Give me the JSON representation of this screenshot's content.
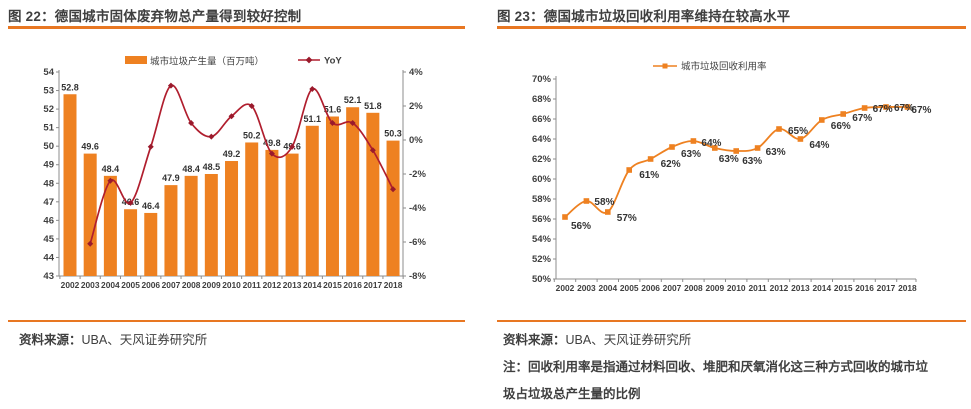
{
  "page": {
    "background": "#FFFFFF"
  },
  "colors": {
    "accent_orange": "#EE8121",
    "rule_orange": "#E87722",
    "yoy_line": "#B01E2E",
    "yoy_marker": "#9A1A2C",
    "recycle_line": "#EE8121",
    "axis_gray": "#8C8C8C",
    "text_dark": "#3F3F3F",
    "label_dark": "#333333"
  },
  "panels": [
    {
      "title": "图 22：德国城市固体废弃物总产量得到较好控制",
      "source_label": "资料来源：",
      "source_text": "UBA、天风证券研究所"
    },
    {
      "title": "图 23：德国城市垃圾回收利用率维持在较高水平",
      "source_label": "资料来源：",
      "source_text": "UBA、天风证券研究所",
      "note_line1": "注：回收利用率是指通过材料回收、堆肥和厌氧消化这三种方式回收的城市垃",
      "note_line2": "圾占垃圾总产生量的比例"
    }
  ],
  "chart_data": [
    {
      "type": "bar",
      "title": "图 22：德国城市固体废弃物总产量得到较好控制",
      "categories": [
        "2002",
        "2003",
        "2004",
        "2005",
        "2006",
        "2007",
        "2008",
        "2009",
        "2010",
        "2011",
        "2012",
        "2013",
        "2014",
        "2015",
        "2016",
        "2017",
        "2018"
      ],
      "series": [
        {
          "name": "城市垃圾产生量（百万吨）",
          "type": "bar",
          "axis": "left",
          "values": [
            52.8,
            49.6,
            48.4,
            46.6,
            46.4,
            47.9,
            48.4,
            48.5,
            49.2,
            50.2,
            49.8,
            49.6,
            51.1,
            51.6,
            52.1,
            51.8,
            50.3
          ]
        },
        {
          "name": "YoY",
          "type": "line",
          "axis": "right",
          "values": [
            null,
            -6.1,
            -2.4,
            -3.7,
            -0.4,
            3.2,
            1.0,
            0.2,
            1.4,
            2.0,
            -0.8,
            -0.4,
            3.0,
            1.0,
            1.0,
            -0.6,
            -2.9
          ]
        }
      ],
      "left_axis": {
        "min": 43,
        "max": 54,
        "step": 1
      },
      "right_axis": {
        "min": -8,
        "max": 4,
        "step": 2,
        "suffix": "%"
      },
      "legend_position": "top",
      "grid": false,
      "xlabel": "",
      "ylabel": ""
    },
    {
      "type": "line",
      "title": "图 23：德国城市垃圾回收利用率维持在较高水平",
      "categories": [
        "2002",
        "2003",
        "2004",
        "2005",
        "2006",
        "2007",
        "2008",
        "2009",
        "2010",
        "2011",
        "2012",
        "2013",
        "2014",
        "2015",
        "2016",
        "2017",
        "2018"
      ],
      "series": [
        {
          "name": "城市垃圾回收利用率",
          "values": [
            56,
            58,
            57,
            61,
            62,
            63,
            64,
            63,
            63,
            63,
            65,
            64,
            66,
            67,
            67,
            67,
            67
          ],
          "point_labels": [
            "56%",
            "58%",
            "57%",
            "61%",
            "62%",
            "63%",
            "64%",
            "63%",
            "63%",
            "63%",
            "65%",
            "64%",
            "66%",
            "67%",
            "67%",
            "67%",
            "67%"
          ],
          "plot_values": [
            56.2,
            57.8,
            56.7,
            60.9,
            62.0,
            63.2,
            63.8,
            63.1,
            62.8,
            63.1,
            65.0,
            64.0,
            65.9,
            66.5,
            67.1,
            67.2,
            67.2
          ]
        }
      ],
      "y_axis": {
        "min": 50,
        "max": 70,
        "step": 2,
        "suffix": "%"
      },
      "legend_position": "top",
      "grid": false,
      "xlabel": "",
      "ylabel": ""
    }
  ]
}
